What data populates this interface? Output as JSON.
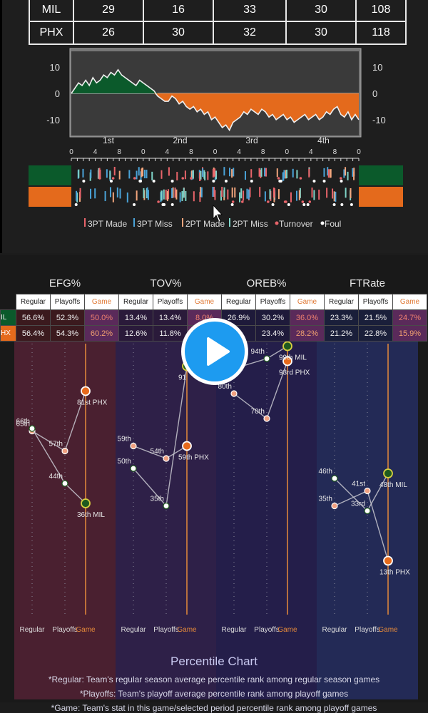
{
  "scoreboard": {
    "rows": [
      {
        "team": "MIL",
        "q": [
          "29",
          "16",
          "33",
          "30"
        ],
        "total": "108"
      },
      {
        "team": "PHX",
        "q": [
          "26",
          "30",
          "32",
          "30"
        ],
        "total": "118"
      }
    ]
  },
  "legend": {
    "items": [
      {
        "label": "3PT Made",
        "color": "#e8646a"
      },
      {
        "label": "3PT Miss",
        "color": "#4aa3d8"
      },
      {
        "label": "2PT Made",
        "color": "#f2a57c"
      },
      {
        "label": "2PT Miss",
        "color": "#7fd4c8"
      },
      {
        "label": "Turnover",
        "color": "#e8646a"
      },
      {
        "label": "Foul",
        "color": "#ffffff"
      }
    ]
  },
  "teams": {
    "mil_color": "#0b5a2b",
    "phx_color": "#e46a1c"
  },
  "metrics": [
    {
      "name": "EFG%",
      "regular": [
        "56.6%",
        "56.4%"
      ],
      "playoffs": [
        "52.3%",
        "54.3%"
      ],
      "game": [
        "50.0%",
        "60.2%"
      ]
    },
    {
      "name": "TOV%",
      "regular": [
        "13.4%",
        "12.6%"
      ],
      "playoffs": [
        "13.4%",
        "11.8%"
      ],
      "game": [
        "8.0%",
        ""
      ]
    },
    {
      "name": "OREB%",
      "regular": [
        "26.9%",
        ""
      ],
      "playoffs": [
        "30.2%",
        "23.4%"
      ],
      "game": [
        "36.0%",
        "28.2%"
      ]
    },
    {
      "name": "FTRate",
      "regular": [
        "23.3%",
        "21.2%"
      ],
      "playoffs": [
        "21.5%",
        "22.8%"
      ],
      "game": [
        "24.7%",
        "15.9%"
      ]
    }
  ],
  "stats_header": {
    "regular": "Regular",
    "playoffs": "Playoffs",
    "game": "Game",
    "team_rows": [
      "IL",
      "HX"
    ]
  },
  "chart_data": [
    {
      "type": "line",
      "title": "",
      "x_ticks": [
        "1st",
        "2nd",
        "3rd",
        "4th"
      ],
      "y_ticks": [
        10,
        0,
        -10
      ],
      "ylim": [
        -16,
        16
      ],
      "series": [
        {
          "values": [
            0,
            2,
            4,
            3,
            5,
            3,
            6,
            4,
            5,
            7,
            6,
            8,
            7,
            9,
            7,
            6,
            5,
            4,
            3,
            5,
            4,
            3,
            2,
            1,
            -1,
            -2,
            -3,
            -3,
            -1,
            -2,
            -4,
            -3,
            -5,
            -6,
            -5,
            -7,
            -6,
            -8,
            -7,
            -10,
            -9,
            -11,
            -13,
            -12,
            -14,
            -11,
            -10,
            -9,
            -7,
            -8,
            -6,
            -7,
            -8,
            -6,
            -7,
            -9,
            -8,
            -10,
            -9,
            -8,
            -10,
            -9,
            -11,
            -10,
            -9,
            -8,
            -10,
            -9,
            -8,
            -10,
            -9,
            -7,
            -8,
            -6,
            -5,
            -8,
            -9,
            -7,
            -10,
            -8,
            -10
          ]
        }
      ]
    },
    {
      "type": "line",
      "title": "Percentile Chart",
      "categories": [
        "Regular",
        "Playoffs",
        "Game"
      ],
      "ylim": [
        0,
        100
      ],
      "panels": [
        {
          "metric": "EFG%",
          "MIL": {
            "values": [
              66,
              44,
              36
            ],
            "labels": [
              "66th",
              "44th",
              "36th MIL"
            ]
          },
          "PHX": {
            "values": [
              65,
              57,
              81
            ],
            "labels": [
              "65th",
              "57th",
              "81st PHX"
            ]
          }
        },
        {
          "metric": "TOV%",
          "MIL": {
            "values": [
              50,
              35,
              91
            ],
            "labels": [
              "50th",
              "35th",
              "91"
            ]
          },
          "PHX": {
            "values": [
              59,
              54,
              59
            ],
            "labels": [
              "59th",
              "54th",
              "59th PHX"
            ]
          }
        },
        {
          "metric": "OREB%",
          "MIL": {
            "values": [
              90,
              94,
              99
            ],
            "labels": [
              "",
              "94th",
              "99th MIL"
            ]
          },
          "PHX": {
            "values": [
              80,
              70,
              93
            ],
            "labels": [
              "80th",
              "70th",
              "93rd PHX"
            ]
          }
        },
        {
          "metric": "FTRate",
          "MIL": {
            "values": [
              46,
              33,
              48
            ],
            "labels": [
              "46th",
              "33rd",
              "48th MIL"
            ]
          },
          "PHX": {
            "values": [
              35,
              41,
              13
            ],
            "labels": [
              "35th",
              "41st",
              "13th PHX"
            ]
          }
        }
      ]
    }
  ],
  "notes": [
    "*Regular: Team's regular season average percentile rank among regular season games",
    "*Playoffs: Team's playoff average percentile rank among playoff games",
    "*Game: Team's stat in this game/selected period percentile rank among playoff games"
  ]
}
